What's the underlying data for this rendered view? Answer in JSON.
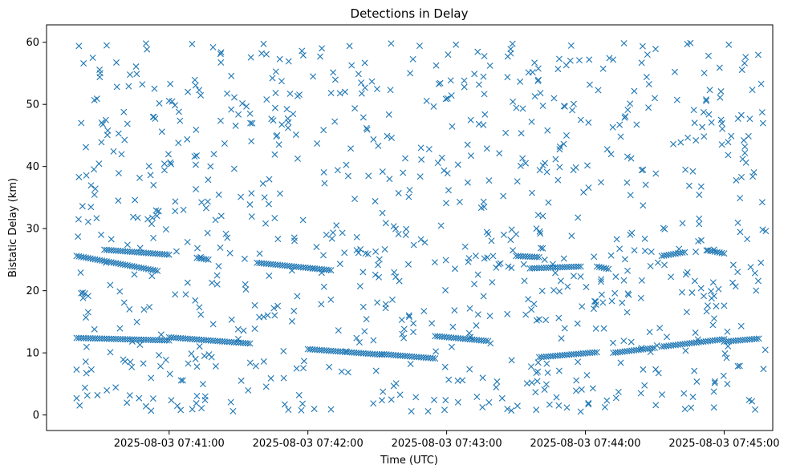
{
  "chart_data": {
    "type": "scatter",
    "title": "Detections in Delay",
    "xlabel": "Time (UTC)",
    "ylabel": "Bistatic Delay (km)",
    "marker": "x",
    "marker_color": "#1f77b4",
    "xlim": [
      "2025-08-03 07:40:07",
      "2025-08-03 07:45:21"
    ],
    "ylim": [
      -2.5,
      62.8
    ],
    "x_ticks": [
      "2025-08-03 07:41:00",
      "2025-08-03 07:42:00",
      "2025-08-03 07:43:00",
      "2025-08-03 07:44:00",
      "2025-08-03 07:45:00"
    ],
    "y_ticks": [
      0,
      10,
      20,
      30,
      40,
      50,
      60
    ],
    "grid": false,
    "legend": "none",
    "series": [
      {
        "tracks": [
          {
            "t": [
              "2025-08-03 07:40:20",
              "2025-08-03 07:40:55"
            ],
            "y": [
              25.6,
              23.2
            ]
          },
          {
            "t": [
              "2025-08-03 07:40:32",
              "2025-08-03 07:41:00"
            ],
            "y": [
              26.6,
              25.8
            ]
          },
          {
            "t": [
              "2025-08-03 07:41:12",
              "2025-08-03 07:41:17"
            ],
            "y": [
              25.3,
              25.0
            ]
          },
          {
            "t": [
              "2025-08-03 07:41:38",
              "2025-08-03 07:42:10"
            ],
            "y": [
              24.5,
              23.3
            ]
          },
          {
            "t": [
              "2025-08-03 07:40:20",
              "2025-08-03 07:41:00"
            ],
            "y": [
              12.4,
              12.0
            ]
          },
          {
            "t": [
              "2025-08-03 07:41:00",
              "2025-08-03 07:41:35"
            ],
            "y": [
              12.5,
              11.5
            ]
          },
          {
            "t": [
              "2025-08-03 07:42:00",
              "2025-08-03 07:42:32"
            ],
            "y": [
              10.6,
              9.7
            ]
          },
          {
            "t": [
              "2025-08-03 07:42:32",
              "2025-08-03 07:42:55"
            ],
            "y": [
              9.8,
              9.1
            ]
          },
          {
            "t": [
              "2025-08-03 07:42:55",
              "2025-08-03 07:43:18"
            ],
            "y": [
              12.7,
              11.9
            ]
          },
          {
            "t": [
              "2025-08-03 07:43:30",
              "2025-08-03 07:43:40"
            ],
            "y": [
              25.6,
              25.4
            ]
          },
          {
            "t": [
              "2025-08-03 07:43:36",
              "2025-08-03 07:43:58"
            ],
            "y": [
              23.6,
              23.9
            ]
          },
          {
            "t": [
              "2025-08-03 07:43:40",
              "2025-08-03 07:44:05"
            ],
            "y": [
              9.3,
              10.1
            ]
          },
          {
            "t": [
              "2025-08-03 07:44:05",
              "2025-08-03 07:44:10"
            ],
            "y": [
              23.9,
              23.5
            ]
          },
          {
            "t": [
              "2025-08-03 07:44:12",
              "2025-08-03 07:44:30"
            ],
            "y": [
              10.0,
              10.8
            ]
          },
          {
            "t": [
              "2025-08-03 07:44:33",
              "2025-08-03 07:44:43"
            ],
            "y": [
              25.6,
              26.2
            ]
          },
          {
            "t": [
              "2025-08-03 07:44:33",
              "2025-08-03 07:45:00"
            ],
            "y": [
              11.0,
              12.2
            ]
          },
          {
            "t": [
              "2025-08-03 07:44:53",
              "2025-08-03 07:45:00"
            ],
            "y": [
              26.5,
              26.0
            ]
          },
          {
            "t": [
              "2025-08-03 07:45:00",
              "2025-08-03 07:45:15"
            ],
            "y": [
              11.8,
              12.3
            ]
          }
        ],
        "points": [
          [
            "2025-08-03 07:40:21",
            59.4
          ],
          [
            "2025-08-03 07:40:23",
            56.6
          ],
          [
            "2025-08-03 07:40:27",
            57.5
          ],
          [
            "2025-08-03 07:40:30",
            54.4
          ],
          [
            "2025-08-03 07:40:22",
            47.0
          ],
          [
            "2025-08-03 07:40:24",
            43.1
          ],
          [
            "2025-08-03 07:40:21",
            38.3
          ],
          [
            "2025-08-03 07:40:25",
            31.1
          ],
          [
            "2025-08-03 07:40:22",
            19.6
          ],
          [
            "2025-08-03 07:40:24",
            15.7
          ],
          [
            "2025-08-03 07:40:20",
            7.3
          ],
          [
            "2025-08-03 07:40:20",
            2.7
          ],
          [
            "2025-08-03 07:40:29",
            3.2
          ],
          [
            "2025-08-03 07:40:35",
            28.3
          ],
          [
            "2025-08-03 07:40:38",
            34.5
          ],
          [
            "2025-08-03 07:40:42",
            27.4
          ],
          [
            "2025-08-03 07:40:46",
            54.9
          ],
          [
            "2025-08-03 07:40:50",
            59.8
          ],
          [
            "2025-08-03 07:40:54",
            47.7
          ],
          [
            "2025-08-03 07:40:47",
            2.7
          ],
          [
            "2025-08-03 07:40:50",
            1.4
          ],
          [
            "2025-08-03 07:40:58",
            39.4
          ],
          [
            "2025-08-03 07:41:04",
            43.8
          ],
          [
            "2025-08-03 07:41:08",
            21.3
          ],
          [
            "2025-08-03 07:41:13",
            52.3
          ],
          [
            "2025-08-03 07:41:19",
            59.2
          ],
          [
            "2025-08-03 07:41:05",
            0.8
          ],
          [
            "2025-08-03 07:41:14",
            1.1
          ],
          [
            "2025-08-03 07:41:24",
            43.7
          ],
          [
            "2025-08-03 07:41:31",
            35.1
          ],
          [
            "2025-08-03 07:41:35",
            48.5
          ],
          [
            "2025-08-03 07:41:40",
            58.2
          ],
          [
            "2025-08-03 07:41:44",
            5.9
          ],
          [
            "2025-08-03 07:41:50",
            1.7
          ],
          [
            "2025-08-03 07:41:58",
            57.9
          ],
          [
            "2025-08-03 07:42:04",
            43.7
          ],
          [
            "2025-08-03 07:42:10",
            0.9
          ],
          [
            "2025-08-03 07:42:18",
            59.4
          ],
          [
            "2025-08-03 07:42:24",
            47.9
          ],
          [
            "2025-08-03 07:42:30",
            18.1
          ],
          [
            "2025-08-03 07:42:36",
            59.8
          ],
          [
            "2025-08-03 07:42:44",
            36.2
          ],
          [
            "2025-08-03 07:42:52",
            0.6
          ],
          [
            "2025-08-03 07:42:58",
            41.4
          ],
          [
            "2025-08-03 07:43:04",
            59.6
          ],
          [
            "2025-08-03 07:43:12",
            54.9
          ],
          [
            "2025-08-03 07:43:18",
            29.1
          ],
          [
            "2025-08-03 07:43:24",
            2.7
          ],
          [
            "2025-08-03 07:43:32",
            40.1
          ],
          [
            "2025-08-03 07:43:38",
            56.7
          ],
          [
            "2025-08-03 07:43:44",
            34.2
          ],
          [
            "2025-08-03 07:43:52",
            1.2
          ],
          [
            "2025-08-03 07:43:58",
            47.5
          ],
          [
            "2025-08-03 07:44:04",
            18.3
          ],
          [
            "2025-08-03 07:44:12",
            57.2
          ],
          [
            "2025-08-03 07:44:18",
            37.4
          ],
          [
            "2025-08-03 07:44:24",
            3.5
          ],
          [
            "2025-08-03 07:44:30",
            51.0
          ],
          [
            "2025-08-03 07:44:38",
            43.6
          ],
          [
            "2025-08-03 07:44:44",
            59.7
          ],
          [
            "2025-08-03 07:44:50",
            20.4
          ],
          [
            "2025-08-03 07:44:56",
            5.4
          ],
          [
            "2025-08-03 07:45:02",
            59.6
          ],
          [
            "2025-08-03 07:45:08",
            41.2
          ],
          [
            "2025-08-03 07:45:12",
            2.2
          ],
          [
            "2025-08-03 07:45:16",
            53.3
          ],
          [
            "2025-08-03 07:45:18",
            29.6
          ],
          [
            "2025-08-03 07:45:17",
            7.4
          ]
        ],
        "scatter_note_excluded": ""
      }
    ]
  }
}
